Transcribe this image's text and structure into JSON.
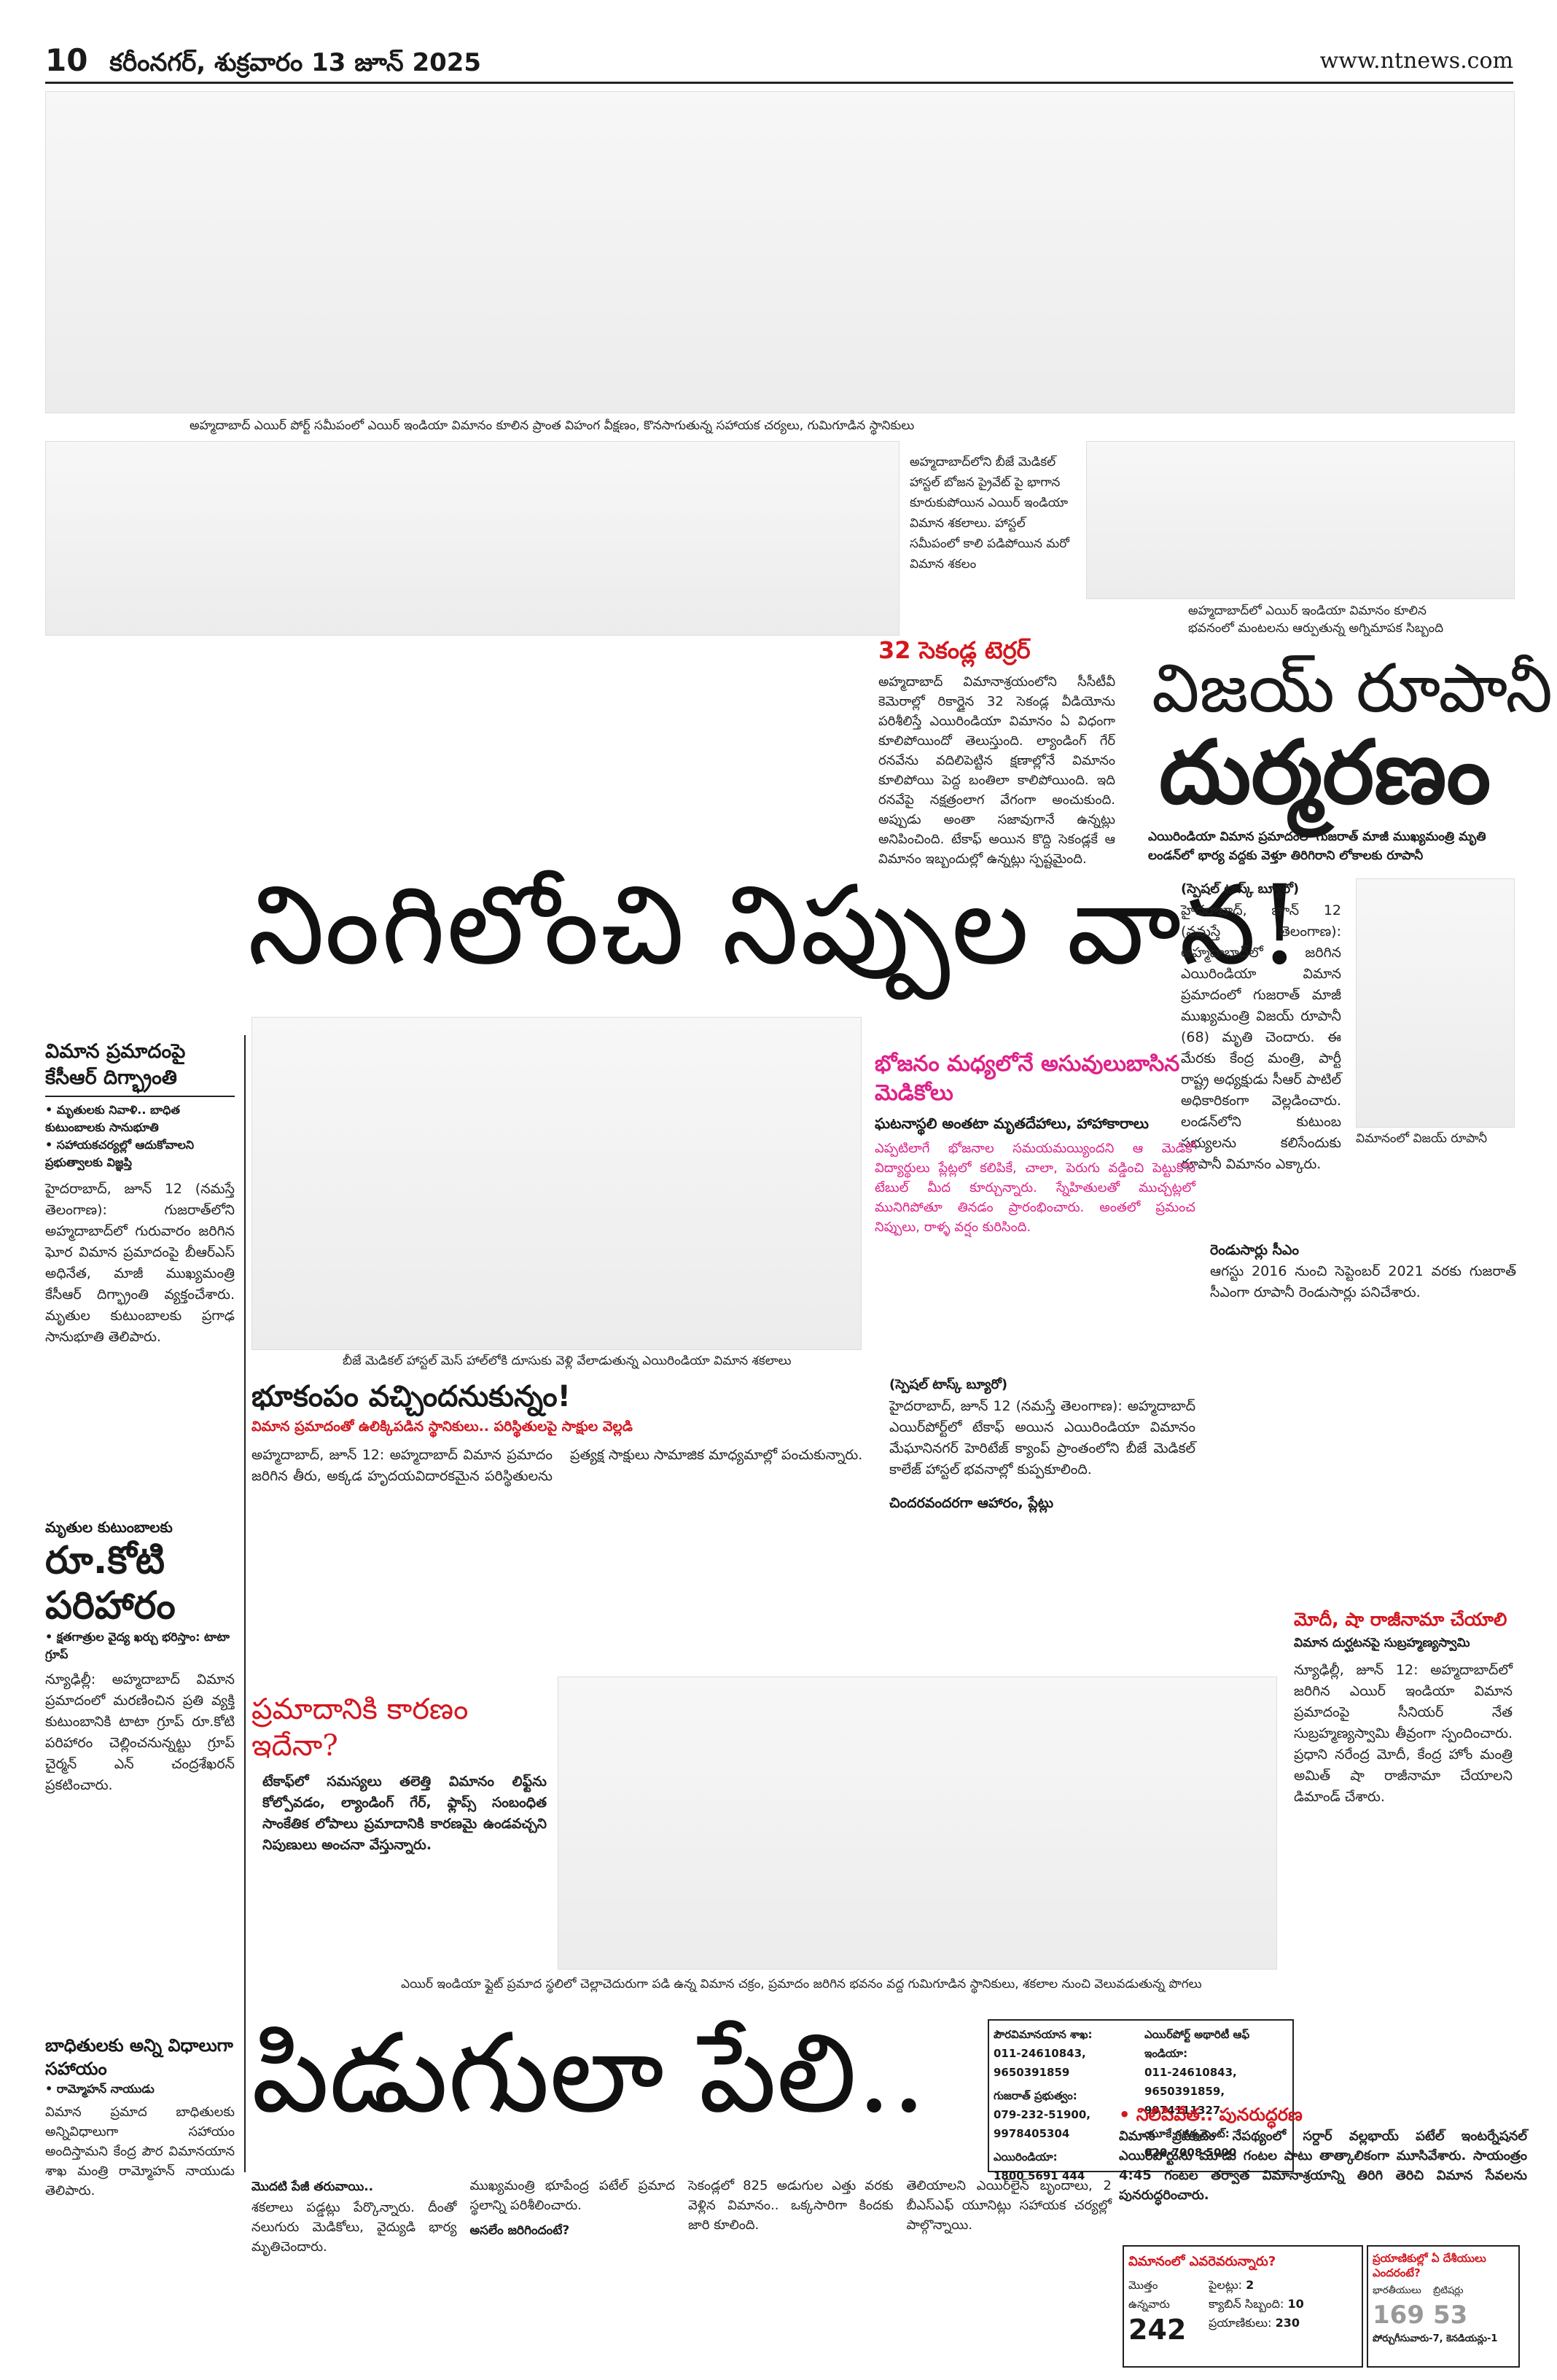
{
  "header": {
    "page_number": "10",
    "dateline": "కరీంనగర్, శుక్రవారం 13 జూన్ 2025",
    "website": "www.ntnews.com"
  },
  "top_photo": {
    "caption": "అహ్మదాబాద్ ఎయిర్ పోర్ట్ సమీపంలో ఎయిర్ ఇండియా విమానం కూలిన ప్రాంత విహంగ వీక్షణం, కొనసాగుతున్న సహాయక చర్యలు, గుమిగూడిన స్థానికులు"
  },
  "inset_photo_caption": "అహ్మదాబాద్‌లోని బీజే మెడికల్ హాస్టల్ బోజన ప్రైవేట్ పై భాగాన కూరుకుపోయిన ఎయిర్ ఇండియా విమాన శకలాలు. హాస్టల్ సమీపంలో కాలి పడిపోయిన మరో విమాన శకలం",
  "terror_box": {
    "title": "32 సెకండ్ల టెర్రర్",
    "text": "అహ్మదాబాద్ విమానాశ్రయంలోని సీసీటీవీ కెమెరాల్లో రికార్డైన 32 సెకండ్ల వీడియోను పరిశీలిస్తే ఎయిరిండియా విమానం ఏ విధంగా కూలిపోయిందో తెలుస్తుంది. ల్యాండింగ్ గేర్ రనవేను వదిలిపెట్టిన క్షణాల్లోనే విమానం కూలిపోయి పెద్ద బంతిలా కాలిపోయింది. ఇది రనవేపై నక్షత్రంలాగ వేగంగా అంచుకుంది. అప్పుడు అంతా సజావుగానే ఉన్నట్లు అనిపించింది. టేకాఫ్ అయిన కొద్ది సెకండ్లకే ఆ విమానం ఇబ్బందుల్లో ఉన్నట్లు స్పష్టమైంది."
  },
  "vijay": {
    "photo_caption": "అహ్మదాబాద్‌లో ఎయిర్ ఇండియా విమానం కూలిన భవనంలో మంటలను ఆర్పుతున్న అగ్నిమాపక సిబ్బంది",
    "head_top": "విజయ్ రూపానీ",
    "head_bottom": "దుర్మరణం",
    "deck": "ఎయిరిండియా విమాన ప్రమాదంలో గుజరాత్ మాజీ ముఖ్యమంత్రి మృతి లండన్‌లో భార్య వద్దకు వెళ్తూ తిరిగిరాని లోకాలకు రూపానీ",
    "byline": "(స్పెషల్ టాస్క్ బ్యూరో)",
    "body": "హైదరాబాద్, జూన్ 12 (నమస్తే తెలంగాణ): అహ్మదాబాద్‌లో జరిగిన ఎయిరిండియా విమాన ప్రమాదంలో గుజరాత్ మాజీ ముఖ్యమంత్రి విజయ్ రూపానీ (68) మృతి చెందారు. ఈ మేరకు కేంద్ర మంత్రి, పార్టీ రాష్ట్ర అధ్యక్షుడు సీఆర్ పాటిల్ అధికారికంగా వెల్లడించారు. లండన్‌లోని కుటుంబ సభ్యులను కలిసేందుకు రూపానీ విమానం ఎక్కారు.",
    "photo_label": "విమానంలో విజయ్ రూపానీ",
    "body2": "ఆగస్టు 2016 నుంచి సెప్టెంబర్ 2021 వరకు గుజరాత్ సీఎంగా రూపానీ రెండుసార్లు పనిచేశారు.",
    "subhead": "రెండుసార్లు సీఎం"
  },
  "main_headline": "నింగిలోంచి నిప్పుల వాన!",
  "kcr": {
    "head": "విమాన ప్రమాదంపై కేసీఆర్ దిగ్భ్రాంతి",
    "bullets": [
      "మృతులకు నివాళి.. బాధిత కుటుంబాలకు సానుభూతి",
      "సహాయకచర్యల్లో ఆదుకోవాలని ప్రభుత్వాలకు విజ్ఞప్తి"
    ],
    "body": "హైదరాబాద్, జూన్ 12 (నమస్తే తెలంగాణ): గుజరాత్‌లోని అహ్మదాబాద్‌లో గురువారం జరిగిన ఘోర విమాన ప్రమాదంపై బీఆర్ఎస్ అధినేత, మాజీ ముఖ్యమంత్రి కేసీఆర్ దిగ్భ్రాంతి వ్యక్తంచేశారు. మృతుల కుటుంబాలకు ప్రగాఢ సానుభూతి తెలిపారు."
  },
  "medicos": {
    "head": "భోజనం మధ్యలోనే అసువులుబాసిన మెడికోలు",
    "subhead": "ఘటనాస్థలి అంతటా మృతదేహాలు, హాహాకారాలు",
    "intro": "ఎప్పటిలాగే భోజనాల సమయమయ్యిందని ఆ మెడికో విద్యార్థులు ప్లేట్లలో కలిపికే, చాలా, పెరుగు వడ్డించి పెట్టుకొని టేబుల్ మీద కూర్చున్నారు. స్నేహితులతో ముచ్చట్లలో మునిగిపోతూ తినడం ప్రారంభించారు. అంతలో ప్రమంచ నిప్పులు, రాళ్ళ వర్షం కురిసింది.",
    "byline": "(స్పెషల్ టాస్క్ బ్యూరో)",
    "body": "హైదరాబాద్, జూన్ 12 (నమస్తే తెలంగాణ): అహ్మదాబాద్ ఎయిర్‌పోర్ట్‌లో టేకాఫ్ అయిన ఎయిరిండియా విమానం మేఘానినగర్ హెరిటేజ్ క్యాంప్ ప్రాంతంలోని బీజే మెడికల్ కాలేజ్ హాస్టల్ భవనాల్లో కుప్పకూలింది.",
    "subhead2": "చిందరవందరగా ఆహారం, ప్లేట్లు"
  },
  "hostel_photo_caption": "బీజే మెడికల్ హాస్టల్ మెస్ హాల్‌లోకి దూసుకు వెళ్లి వేలాడుతున్న ఎయిరిండియా విమాన శకలాలు",
  "earthquake": {
    "head": "భూకంపం వచ్చిందనుకున్నం!",
    "deck": "విమాన ప్రమాదంతో ఉలిక్కిపడిన స్థానికులు.. పరిస్థితులపై సాక్షుల వెల్లడి",
    "body": "అహ్మదాబాద్, జూన్ 12: అహ్మదాబాద్ విమాన ప్రమాదం జరిగిన తీరు, అక్కడ హృదయవిదారకమైన పరిస్థితులను ప్రత్యక్ష సాక్షులు సామాజిక మాధ్యమాల్లో పంచుకున్నారు."
  },
  "reason": {
    "head": "ప్రమాదానికి కారణం ఇదేనా?",
    "body": "టేకాఫ్‌లో సమస్యలు తలెత్తి విమానం లిఫ్ట్‌ను కోల్పోవడం, ల్యాండింగ్ గేర్, ఫ్లాప్స్ సంబంధిత సాంకేతిక లోపాలు ప్రమాదానికి కారణమై ఉండవచ్చని నిపుణులు అంచనా వేస్తున్నారు."
  },
  "modi": {
    "head": "మోదీ, షా రాజీనామా చేయాలి",
    "deck": "విమాన దుర్ఘటనపై సుబ్రహ్మణ్యస్వామి",
    "body": "న్యూఢిల్లీ, జూన్ 12: అహ్మదాబాద్‌లో జరిగిన ఎయిర్ ఇండియా విమాన ప్రమాదంపై సీనియర్ నేత సుబ్రహ్మణ్యస్వామి తీవ్రంగా స్పందించారు. ప్రధాని నరేంద్ర మోదీ, కేంద్ర హోం మంత్రి అమిత్ షా రాజీనామా చేయాలని డిమాండ్ చేశారు."
  },
  "crore": {
    "small_head": "మృతుల కుటుంబాలకు",
    "head": "రూ.కోటి పరిహారం",
    "bullet": "క్షతగాత్రుల వైద్య ఖర్చు భరిస్తాం: టాటా గ్రూప్",
    "body": "న్యూఢిల్లీ: అహ్మదాబాద్ విమాన ప్రమాదంలో మరణించిన ప్రతి వ్యక్తి కుటుంబానికి టాటా గ్రూప్ రూ.కోటి పరిహారం చెల్లించనున్నట్టు గ్రూప్ చైర్మన్ ఎన్ చంద్రశేఖరన్ ప్రకటించారు."
  },
  "naidu": {
    "head": "బాధితులకు అన్ని విధాలుగా సహాయం",
    "bullet": "రామ్మోహన్ నాయుడు",
    "body": "విమాన ప్రమాద బాధితులకు అన్నివిధాలుగా సహాయం అందిస్తామని కేంద్ర పౌర విమానయాన శాఖ మంత్రి రామ్మోహన్ నాయుడు తెలిపారు."
  },
  "bottom_photo_caption": "ఎయిర్ ఇండియా ఫ్లైట్ ప్రమాద స్థలిలో చెల్లాచెదురుగా పడి ఉన్న విమాన చక్రం, ప్రమాదం జరిగిన భవనం వద్ద గుమిగూడిన స్థానికులు, శకలాల నుంచి వెలువడుతున్న పొగలు",
  "bottom_headline": "పిడుగులా పేలి..",
  "helplines": {
    "title1": "పౌరవిమానయాన శాఖ:",
    "nums1": "011-24610843, 9650391859",
    "title2": "గుజరాత్ ప్రభుత్వం:",
    "nums2": "079-232-51900, 9978405304",
    "title3": "ఎయిరిండియా:",
    "nums3": "1800 5691 444",
    "title4": "ఎయిర్‌పోర్ట్ అథారిటీ ఆఫ్ ఇండియా:",
    "nums4": "011-24610843, 9650391859, 9974111327",
    "title5": "యూకే గవర్నమెంట్:",
    "nums5": "020-7008 5000"
  },
  "bottom_body": {
    "subhead1": "మొదటి పేజీ తరువాయి..",
    "col1": "శకలాలు పడ్డట్లు పేర్కొన్నారు. దీంతో నలుగురు మెడికోలు, వైద్యుడి భార్య మృతిచెందారు.",
    "col2": "ముఖ్యమంత్రి భూపేంద్ర పటేల్ ప్రమాద స్థలాన్ని పరిశీలించారు.",
    "subhead2": "అసలేం జరిగిందంటే?",
    "col3": "సెకండ్లలో 825 అడుగుల ఎత్తు వరకు వెళ్లిన విమానం.. ఒక్కసారిగా కిందకు జారి కూలింది.",
    "col4": "తెలియాలని ఎయిర్‌లైన్ బృందాలు, 2 బీఎస్ఎఫ్ యూనిట్లు సహాయక చర్యల్లో పాల్గొన్నాయి."
  },
  "restore": {
    "head": "నిలిపివేత.. పునరుద్ధరణ",
    "body": "విమాన ప్రమాదం నేపథ్యంలో సర్దార్ వల్లభాయ్ పటేల్ ఇంటర్నేషనల్ ఎయిర్‌పోర్టును మూడు గంటల పాటు తాత్కాలికంగా మూసివేశారు. సాయంత్రం 4:45 గంటల తర్వాత విమానాశ్రయాన్ని తిరిగి తెరిచి విమాన సేవలను పునరుద్ధరించారు."
  },
  "table1": {
    "title": "విమానంలో ఎవరెవరున్నారు?",
    "pilots_label": "పైలట్లు:",
    "pilots": "2",
    "total_label": "మొత్తం ఉన్నవారు",
    "total": "242",
    "crew_label": "క్యాబిన్ సిబ్బంది:",
    "crew": "10",
    "passengers_label": "ప్రయాణికులు:",
    "passengers": "230"
  },
  "table2": {
    "title": "ప్రయాణికుల్లో ఏ దేశీయులు ఎందరంటే?",
    "indian_label": "భారతీయులు",
    "indian": "169",
    "british_label": "బ్రిటిషర్లు",
    "british": "53",
    "others": "పోర్చుగీసువారు-7, కెనడియన్లు-1"
  }
}
